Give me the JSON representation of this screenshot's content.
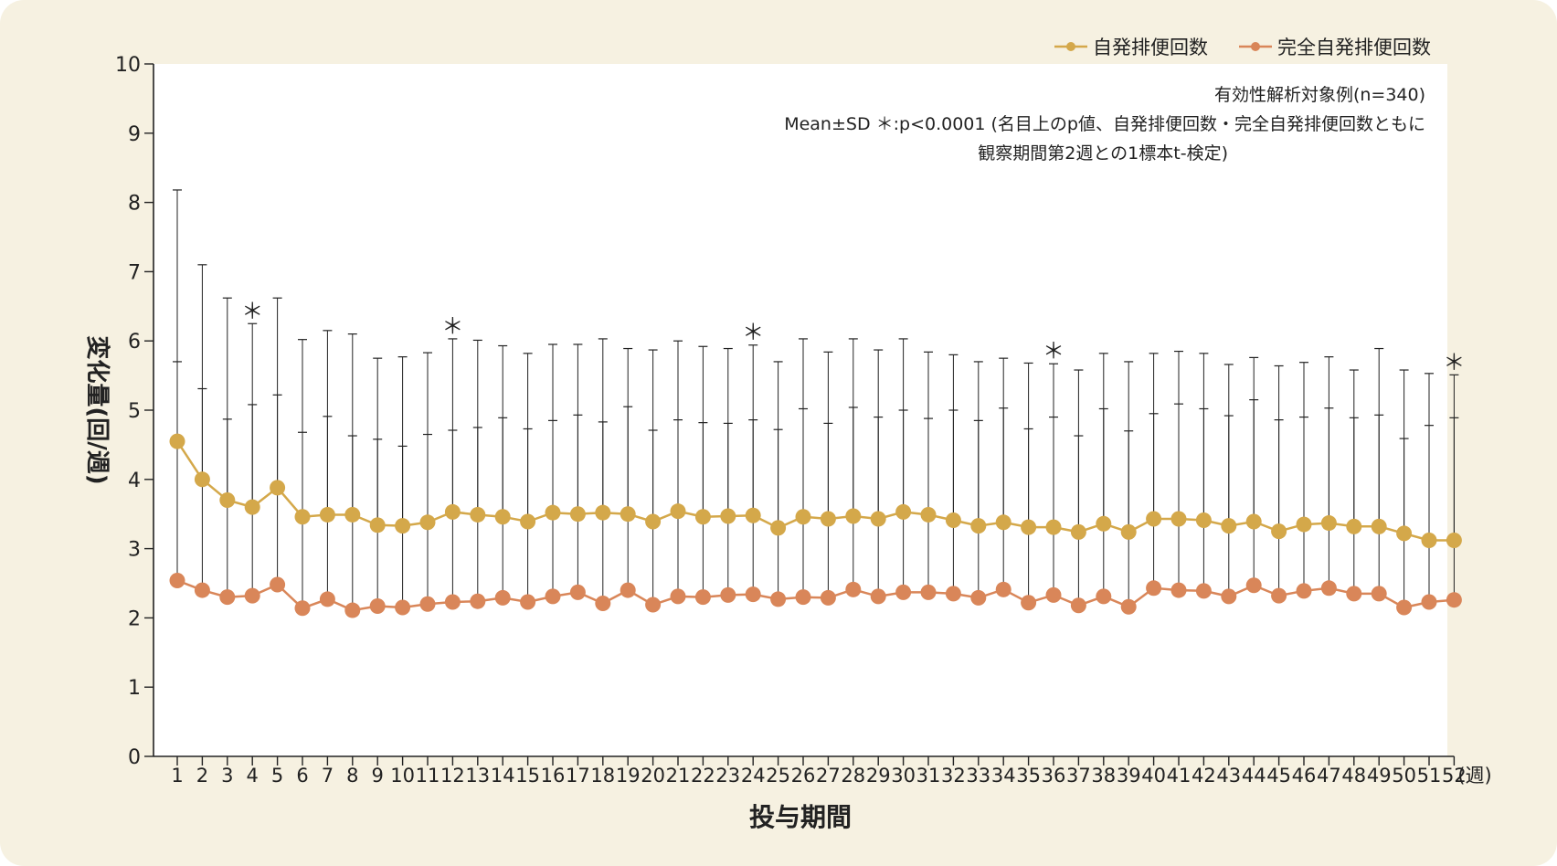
{
  "chart_data": {
    "type": "line",
    "xlabel": "投与期間",
    "xunit": "(週)",
    "ylabel": "変化量(回/週)",
    "ylim": [
      0,
      10
    ],
    "yticks": [
      0,
      1,
      2,
      3,
      4,
      5,
      6,
      7,
      8,
      9,
      10
    ],
    "x": [
      1,
      2,
      3,
      4,
      5,
      6,
      7,
      8,
      9,
      10,
      11,
      12,
      13,
      14,
      15,
      16,
      17,
      18,
      19,
      20,
      21,
      22,
      23,
      24,
      25,
      26,
      27,
      28,
      29,
      30,
      31,
      32,
      33,
      34,
      35,
      36,
      37,
      38,
      39,
      40,
      41,
      42,
      43,
      44,
      45,
      46,
      47,
      48,
      49,
      50,
      51,
      52
    ],
    "grid": false,
    "legend_position": "top-right",
    "annotations": [
      "有効性解析対象例(n=340)",
      "Mean±SD ＊:p<0.0001 (名目上のp値、自発排便回数・完全自発排便回数ともに",
      "観察期間第2週との1標本t-検定)"
    ],
    "significance_marker": "＊",
    "significant_weeks": [
      4,
      12,
      24,
      36,
      52
    ],
    "series": [
      {
        "name": "自発排便回数",
        "color": "#d4a84a",
        "values": [
          4.55,
          4.0,
          3.7,
          3.6,
          3.88,
          3.46,
          3.49,
          3.49,
          3.34,
          3.33,
          3.38,
          3.53,
          3.49,
          3.46,
          3.39,
          3.52,
          3.5,
          3.52,
          3.5,
          3.39,
          3.54,
          3.46,
          3.47,
          3.48,
          3.3,
          3.46,
          3.43,
          3.47,
          3.43,
          3.53,
          3.49,
          3.41,
          3.33,
          3.38,
          3.31,
          3.31,
          3.24,
          3.36,
          3.24,
          3.43,
          3.43,
          3.41,
          3.33,
          3.39,
          3.25,
          3.35,
          3.37,
          3.32,
          3.32,
          3.22,
          3.12,
          3.12
        ],
        "sd_upper": [
          8.18,
          7.1,
          6.62,
          6.25,
          6.62,
          6.02,
          6.15,
          6.1,
          5.75,
          5.77,
          5.83,
          6.03,
          6.01,
          5.93,
          5.82,
          5.95,
          5.95,
          6.03,
          5.89,
          5.87,
          6.0,
          5.92,
          5.89,
          5.94,
          5.7,
          6.03,
          5.84,
          6.03,
          5.87,
          6.03,
          5.84,
          5.8,
          5.7,
          5.75,
          5.68,
          5.67,
          5.58,
          5.82,
          5.7,
          5.82,
          5.85,
          5.82,
          5.66,
          5.76,
          5.64,
          5.69,
          5.77,
          5.58,
          5.89,
          5.58,
          5.53,
          5.51
        ]
      },
      {
        "name": "完全自発排便回数",
        "color": "#d98659",
        "values": [
          2.54,
          2.4,
          2.3,
          2.32,
          2.48,
          2.14,
          2.27,
          2.11,
          2.17,
          2.15,
          2.2,
          2.23,
          2.24,
          2.29,
          2.23,
          2.31,
          2.37,
          2.21,
          2.4,
          2.19,
          2.31,
          2.3,
          2.33,
          2.34,
          2.27,
          2.3,
          2.29,
          2.41,
          2.31,
          2.37,
          2.37,
          2.35,
          2.29,
          2.41,
          2.22,
          2.33,
          2.18,
          2.31,
          2.16,
          2.43,
          2.4,
          2.39,
          2.31,
          2.47,
          2.32,
          2.39,
          2.43,
          2.35,
          2.35,
          2.15,
          2.23,
          2.26
        ],
        "sd_upper": [
          5.7,
          5.31,
          4.87,
          5.08,
          5.22,
          4.68,
          4.91,
          4.63,
          4.58,
          4.48,
          4.65,
          4.71,
          4.75,
          4.89,
          4.73,
          4.85,
          4.93,
          4.83,
          5.05,
          4.71,
          4.86,
          4.82,
          4.81,
          4.86,
          4.72,
          5.02,
          4.81,
          5.04,
          4.9,
          5.0,
          4.88,
          5.0,
          4.85,
          5.03,
          4.73,
          4.9,
          4.63,
          5.02,
          4.7,
          4.95,
          5.09,
          5.02,
          4.92,
          5.15,
          4.86,
          4.9,
          5.03,
          4.89,
          4.93,
          4.59,
          4.78,
          4.89
        ]
      }
    ]
  }
}
